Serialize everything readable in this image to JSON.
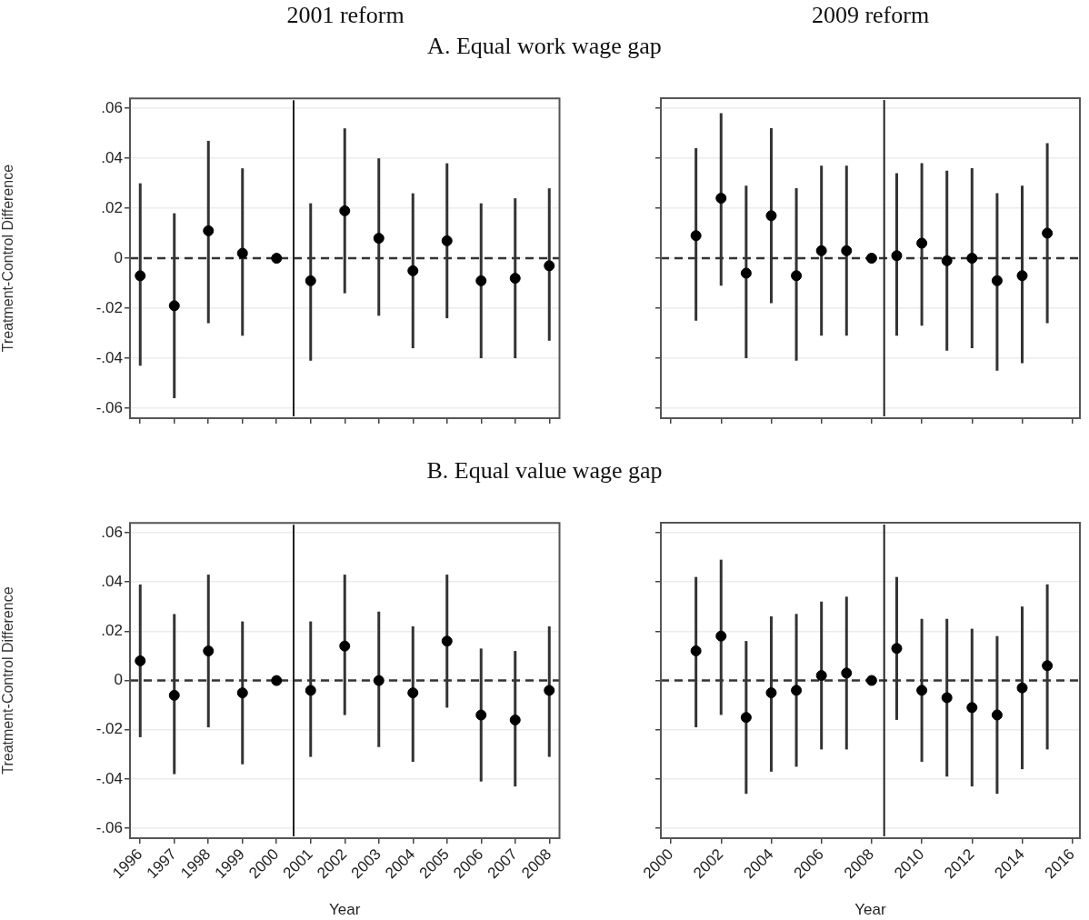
{
  "chart_data": [
    {
      "type": "scatter",
      "title": "2001 reform",
      "subtitle": "A. Equal work wage gap",
      "ylabel": "Treatment-Control Difference",
      "color": "#000000",
      "marker": "circle",
      "grid": "y",
      "legend": false,
      "tick_labels": "y",
      "x": [
        1996,
        1997,
        1998,
        1999,
        2000,
        2001,
        2002,
        2003,
        2004,
        2005,
        2006,
        2007,
        2008
      ],
      "values": [
        -0.007,
        -0.019,
        0.011,
        0.002,
        0,
        -0.009,
        0.019,
        0.008,
        -0.005,
        0.007,
        -0.009,
        -0.008,
        -0.003
      ],
      "errors": [
        [
          -0.043,
          0.03
        ],
        [
          -0.056,
          0.018
        ],
        [
          -0.026,
          0.047
        ],
        [
          -0.031,
          0.036
        ],
        null,
        [
          -0.041,
          0.022
        ],
        [
          -0.014,
          0.052
        ],
        [
          -0.023,
          0.04
        ],
        [
          -0.036,
          0.026
        ],
        [
          -0.024,
          0.038
        ],
        [
          -0.04,
          0.022
        ],
        [
          -0.04,
          0.024
        ],
        [
          -0.033,
          0.028
        ]
      ],
      "xlim": [
        1995.7,
        2008.3
      ],
      "xticks": [
        1996,
        1997,
        1998,
        1999,
        2000,
        2001,
        2002,
        2003,
        2004,
        2005,
        2006,
        2007,
        2008
      ],
      "ylim": [
        -0.064,
        0.064
      ],
      "yticks": [
        {
          "value": -0.06,
          "label": "-.06"
        },
        {
          "value": -0.04,
          "label": "-.04"
        },
        {
          "value": -0.02,
          "label": "-.02"
        },
        0,
        {
          "value": 0.02,
          "label": ".02"
        },
        {
          "value": 0.04,
          "label": ".04"
        },
        {
          "value": 0.06,
          "label": ".06"
        }
      ],
      "ref_lines": [
        {
          "axis": "y",
          "value": 0,
          "line_style": "dashed",
          "color": "#333333"
        },
        {
          "axis": "x",
          "value": 2000.5,
          "line_style": "solid",
          "color": "#222222"
        }
      ]
    },
    {
      "type": "scatter",
      "title": "2009 reform",
      "color": "#000000",
      "marker": "circle",
      "grid": "y",
      "legend": false,
      "tick_labels": false,
      "x": [
        2001,
        2002,
        2003,
        2004,
        2005,
        2006,
        2007,
        2008,
        2009,
        2010,
        2011,
        2012,
        2013,
        2014,
        2015
      ],
      "values": [
        0.009,
        0.024,
        -0.006,
        0.017,
        -0.007,
        0.003,
        0.003,
        0,
        0.001,
        0.006,
        -0.001,
        0,
        -0.009,
        -0.007,
        0.01
      ],
      "errors": [
        [
          -0.025,
          0.044
        ],
        [
          -0.011,
          0.058
        ],
        [
          -0.04,
          0.029
        ],
        [
          -0.018,
          0.052
        ],
        [
          -0.041,
          0.028
        ],
        [
          -0.031,
          0.037
        ],
        [
          -0.031,
          0.037
        ],
        null,
        [
          -0.031,
          0.034
        ],
        [
          -0.027,
          0.038
        ],
        [
          -0.037,
          0.035
        ],
        [
          -0.036,
          0.036
        ],
        [
          -0.045,
          0.026
        ],
        [
          -0.042,
          0.029
        ],
        [
          -0.026,
          0.046
        ]
      ],
      "xlim": [
        1999.6,
        2016.3
      ],
      "xticks": [
        2000,
        2002,
        2004,
        2006,
        2008,
        2010,
        2012,
        2014,
        2016
      ],
      "ylim": [
        -0.064,
        0.064
      ],
      "yticks": [
        -0.06,
        -0.04,
        -0.02,
        0,
        0.02,
        0.04,
        0.06
      ],
      "ref_lines": [
        {
          "axis": "y",
          "value": 0,
          "line_style": "dashed",
          "color": "#333333"
        },
        {
          "axis": "x",
          "value": 2008.5,
          "line_style": "solid",
          "color": "#222222"
        }
      ]
    },
    {
      "type": "scatter",
      "subtitle": "B. Equal value wage gap",
      "ylabel": "Treatment-Control Difference",
      "xlabel": "Year",
      "color": "#000000",
      "marker": "circle",
      "grid": "y",
      "legend": false,
      "x": [
        1996,
        1997,
        1998,
        1999,
        2000,
        2001,
        2002,
        2003,
        2004,
        2005,
        2006,
        2007,
        2008
      ],
      "values": [
        0.008,
        -0.006,
        0.012,
        -0.005,
        0,
        -0.004,
        0.014,
        0,
        -0.005,
        0.016,
        -0.014,
        -0.016,
        -0.004
      ],
      "errors": [
        [
          -0.023,
          0.039
        ],
        [
          -0.038,
          0.027
        ],
        [
          -0.019,
          0.043
        ],
        [
          -0.034,
          0.024
        ],
        null,
        [
          -0.031,
          0.024
        ],
        [
          -0.014,
          0.043
        ],
        [
          -0.027,
          0.028
        ],
        [
          -0.033,
          0.022
        ],
        [
          -0.011,
          0.043
        ],
        [
          -0.041,
          0.013
        ],
        [
          -0.043,
          0.012
        ],
        [
          -0.031,
          0.022
        ]
      ],
      "xlim": [
        1995.7,
        2008.3
      ],
      "xticks": [
        1996,
        1997,
        1998,
        1999,
        2000,
        2001,
        2002,
        2003,
        2004,
        2005,
        2006,
        2007,
        2008
      ],
      "ylim": [
        -0.064,
        0.064
      ],
      "yticks": [
        {
          "value": -0.06,
          "label": "-.06"
        },
        {
          "value": -0.04,
          "label": "-.04"
        },
        {
          "value": -0.02,
          "label": "-.02"
        },
        0,
        {
          "value": 0.02,
          "label": ".02"
        },
        {
          "value": 0.04,
          "label": ".04"
        },
        {
          "value": 0.06,
          "label": ".06"
        }
      ],
      "ref_lines": [
        {
          "axis": "y",
          "value": 0,
          "line_style": "dashed",
          "color": "#333333"
        },
        {
          "axis": "x",
          "value": 2000.5,
          "line_style": "solid",
          "color": "#222222"
        }
      ]
    },
    {
      "type": "scatter",
      "xlabel": "Year",
      "color": "#000000",
      "marker": "circle",
      "grid": "y",
      "legend": false,
      "tick_labels": "x",
      "x": [
        2001,
        2002,
        2003,
        2004,
        2005,
        2006,
        2007,
        2008,
        2009,
        2010,
        2011,
        2012,
        2013,
        2014,
        2015
      ],
      "values": [
        0.012,
        0.018,
        -0.015,
        -0.005,
        -0.004,
        0.002,
        0.003,
        0,
        0.013,
        -0.004,
        -0.007,
        -0.011,
        -0.014,
        -0.003,
        0.006
      ],
      "errors": [
        [
          -0.019,
          0.042
        ],
        [
          -0.014,
          0.049
        ],
        [
          -0.046,
          0.016
        ],
        [
          -0.037,
          0.026
        ],
        [
          -0.035,
          0.027
        ],
        [
          -0.028,
          0.032
        ],
        [
          -0.028,
          0.034
        ],
        null,
        [
          -0.016,
          0.042
        ],
        [
          -0.033,
          0.025
        ],
        [
          -0.039,
          0.025
        ],
        [
          -0.043,
          0.021
        ],
        [
          -0.046,
          0.018
        ],
        [
          -0.036,
          0.03
        ],
        [
          -0.028,
          0.039
        ]
      ],
      "xlim": [
        1999.6,
        2016.3
      ],
      "xticks": [
        2000,
        2002,
        2004,
        2006,
        2008,
        2010,
        2012,
        2014,
        2016
      ],
      "ylim": [
        -0.064,
        0.064
      ],
      "yticks": [
        -0.06,
        -0.04,
        -0.02,
        0,
        0.02,
        0.04,
        0.06
      ],
      "ref_lines": [
        {
          "axis": "y",
          "value": 0,
          "line_style": "dashed",
          "color": "#333333"
        },
        {
          "axis": "x",
          "value": 2008.5,
          "line_style": "solid",
          "color": "#222222"
        }
      ]
    }
  ]
}
